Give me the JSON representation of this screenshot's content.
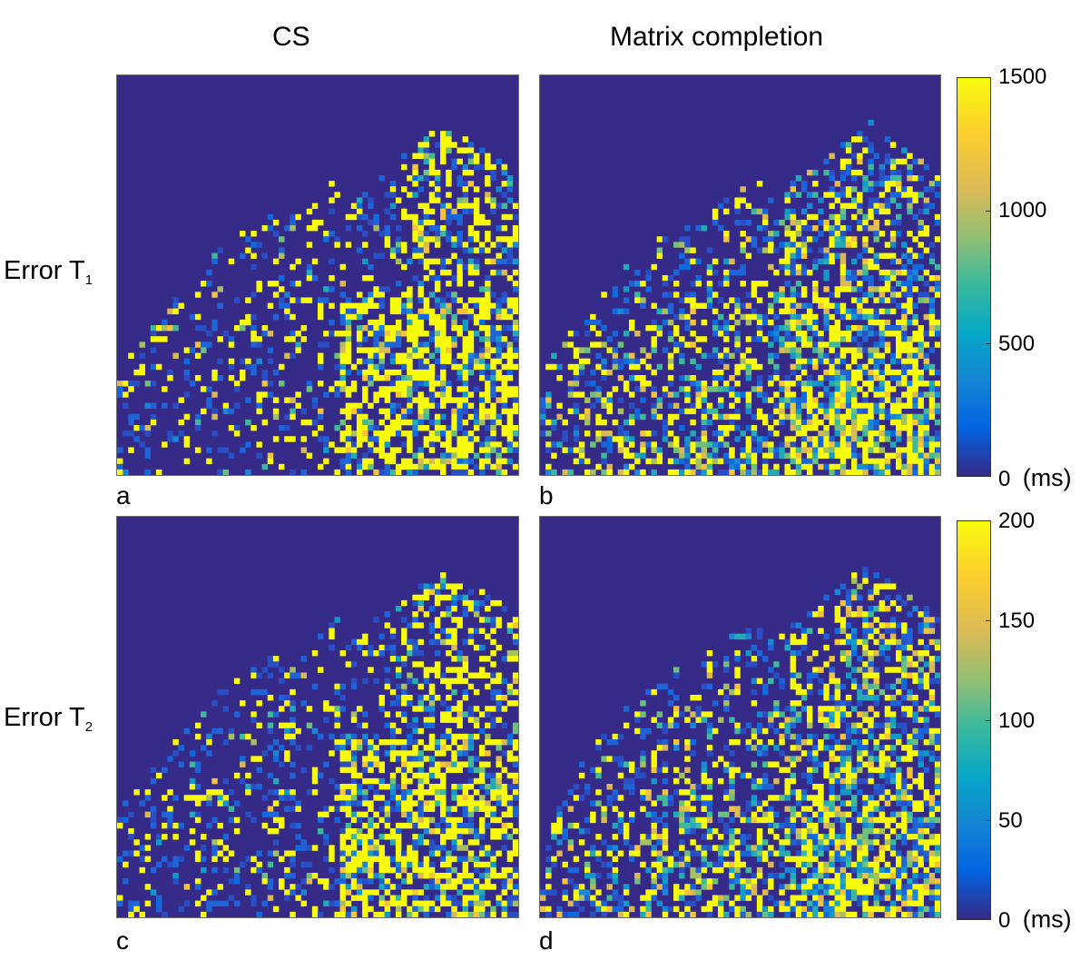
{
  "columns": [
    "CS",
    "Matrix completion"
  ],
  "rows": [
    {
      "label_main": "Error T",
      "label_sub": "1"
    },
    {
      "label_main": "Error T",
      "label_sub": "2"
    }
  ],
  "panel_letters": [
    "a",
    "b",
    "c",
    "d"
  ],
  "chart_data": [
    {
      "type": "heatmap",
      "panel": "a",
      "title": "CS",
      "row_label": "Error T1",
      "colorbar": {
        "min": 0,
        "max": 1500,
        "ticks": [
          0,
          500,
          1000,
          1500
        ],
        "unit": "(ms)"
      },
      "colormap": "parula",
      "grid": false
    },
    {
      "type": "heatmap",
      "panel": "b",
      "title": "Matrix completion",
      "row_label": "Error T1",
      "colorbar": {
        "min": 0,
        "max": 1500,
        "ticks": [
          0,
          500,
          1000,
          1500
        ],
        "unit": "(ms)"
      },
      "colormap": "parula",
      "grid": false
    },
    {
      "type": "heatmap",
      "panel": "c",
      "title": "CS",
      "row_label": "Error T2",
      "colorbar": {
        "min": 0,
        "max": 200,
        "ticks": [
          0,
          50,
          100,
          150,
          200
        ],
        "unit": "(ms)"
      },
      "colormap": "parula",
      "grid": false
    },
    {
      "type": "heatmap",
      "panel": "d",
      "title": "Matrix completion",
      "row_label": "Error T2",
      "colorbar": {
        "min": 0,
        "max": 200,
        "ticks": [
          0,
          50,
          100,
          150,
          200
        ],
        "unit": "(ms)"
      },
      "colormap": "parula",
      "grid": false
    }
  ],
  "colorbars": [
    {
      "ticks": [
        "1500",
        "1000",
        "500",
        "0"
      ],
      "unit": "(ms)"
    },
    {
      "ticks": [
        "200",
        "150",
        "100",
        "50",
        "0"
      ],
      "unit": "(ms)"
    }
  ]
}
